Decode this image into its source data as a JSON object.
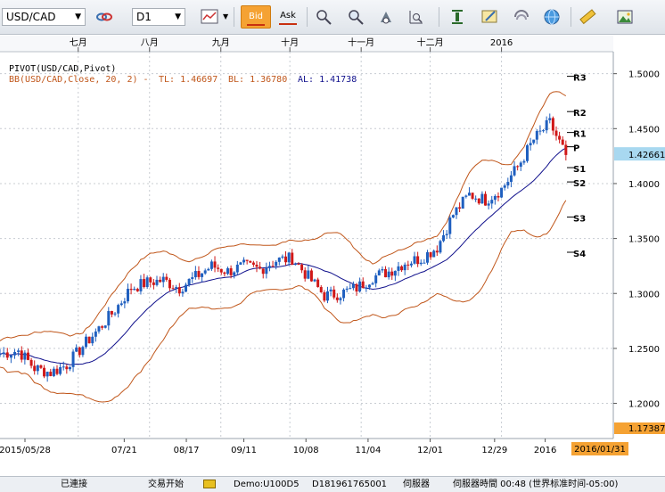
{
  "toolbar": {
    "symbol": "USD/CAD",
    "timeframe": "D1",
    "bid_label": "Bid",
    "ask_label": "Ask",
    "icons": [
      "link-icon",
      "chart-type-icon",
      "crosshair-icon",
      "magnify-icon",
      "zoom-fit-icon",
      "indicator-icon",
      "bar-icon",
      "edit-icon",
      "refresh-icon",
      "globe-icon",
      "ruler-icon",
      "picture-icon"
    ]
  },
  "chart": {
    "legend_pivot": "PIVOT(USD/CAD,Pivot)",
    "legend_bb_name": "BB(USD/CAD,Close, 20, 2)  -",
    "legend_tl": "TL: 1.46697",
    "legend_bl": "BL: 1.36780",
    "legend_al": "AL: 1.41738",
    "current_price": "1.42661",
    "low_price": "1.17387",
    "current_date": "2016/01/31",
    "pivot_labels": [
      "R3",
      "R2",
      "R1",
      "P",
      "S1",
      "S2",
      "S3",
      "S4"
    ],
    "month_labels": [
      "七月",
      "八月",
      "九月",
      "十月",
      "十一月",
      "十二月",
      "2016"
    ],
    "price_ticks": [
      "1.5000",
      "1.4500",
      "1.4000",
      "1.3500",
      "1.3000",
      "1.2500",
      "1.2000"
    ],
    "date_ticks": [
      "2015/05/28",
      "07/21",
      "08/17",
      "09/11",
      "10/08",
      "11/04",
      "12/01",
      "12/29",
      "2016"
    ],
    "colors": {
      "up": "#1f5fbf",
      "down": "#d01818",
      "bb_band": "#c0561a",
      "bb_mid": "#10108c",
      "price_highlight": "#a8d8f0",
      "date_highlight": "#f5a233"
    }
  },
  "chart_data": {
    "type": "candlestick",
    "symbol": "USD/CAD",
    "timeframe": "D1",
    "ylim": [
      1.168,
      1.52
    ],
    "xlim": [
      "2015-05-28",
      "2016-01-31"
    ],
    "close_series": [
      [
        "2015-05-28",
        1.245
      ],
      [
        "2015-06-05",
        1.248
      ],
      [
        "2015-06-12",
        1.232
      ],
      [
        "2015-06-19",
        1.228
      ],
      [
        "2015-06-26",
        1.235
      ],
      [
        "2015-07-03",
        1.252
      ],
      [
        "2015-07-10",
        1.268
      ],
      [
        "2015-07-17",
        1.285
      ],
      [
        "2015-07-24",
        1.305
      ],
      [
        "2015-07-31",
        1.31
      ],
      [
        "2015-08-07",
        1.312
      ],
      [
        "2015-08-14",
        1.305
      ],
      [
        "2015-08-21",
        1.315
      ],
      [
        "2015-08-28",
        1.325
      ],
      [
        "2015-09-04",
        1.32
      ],
      [
        "2015-09-11",
        1.325
      ],
      [
        "2015-09-18",
        1.322
      ],
      [
        "2015-09-25",
        1.33
      ],
      [
        "2015-10-02",
        1.332
      ],
      [
        "2015-10-09",
        1.315
      ],
      [
        "2015-10-16",
        1.298
      ],
      [
        "2015-10-23",
        1.3
      ],
      [
        "2015-10-30",
        1.305
      ],
      [
        "2015-11-06",
        1.315
      ],
      [
        "2015-11-13",
        1.32
      ],
      [
        "2015-11-20",
        1.328
      ],
      [
        "2015-11-27",
        1.332
      ],
      [
        "2015-12-04",
        1.342
      ],
      [
        "2015-12-11",
        1.372
      ],
      [
        "2015-12-18",
        1.39
      ],
      [
        "2015-12-25",
        1.385
      ],
      [
        "2016-01-01",
        1.395
      ],
      [
        "2016-01-08",
        1.415
      ],
      [
        "2016-01-15",
        1.44
      ],
      [
        "2016-01-22",
        1.455
      ],
      [
        "2016-01-29",
        1.426
      ]
    ],
    "bollinger": {
      "period": 20,
      "deviations": 2,
      "upper": 1.46697,
      "lower": 1.3678,
      "middle": 1.41738
    },
    "pivots": {
      "R3": 1.4976,
      "R2": 1.4655,
      "R1": 1.4465,
      "P": 1.4335,
      "S1": 1.4145,
      "S2": 1.4015,
      "S3": 1.3695,
      "S4": 1.3375
    },
    "last_price": 1.42661,
    "low_marker": 1.17387
  },
  "status": {
    "connection": "已連接",
    "trade_start": "交易开始",
    "account": "Demo:U100D5",
    "account_id": "D181961765001",
    "server": "伺服器",
    "server_time": "伺服器時間 00:48 (世界标准时间-05:00)"
  }
}
